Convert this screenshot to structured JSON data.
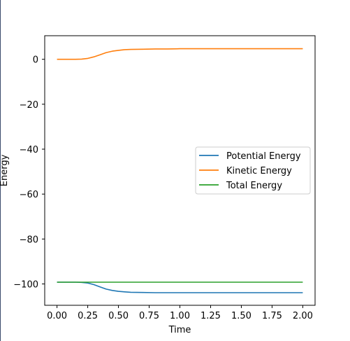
{
  "chart_data": {
    "type": "line",
    "xlabel": "Time",
    "ylabel": "Energy",
    "xlim": [
      -0.1,
      2.1
    ],
    "ylim": [
      -109.5,
      10.5
    ],
    "xticks": [
      0.0,
      0.25,
      0.5,
      0.75,
      1.0,
      1.25,
      1.5,
      1.75,
      2.0
    ],
    "xtick_labels": [
      "0.00",
      "0.25",
      "0.50",
      "0.75",
      "1.00",
      "1.25",
      "1.50",
      "1.75",
      "2.00"
    ],
    "yticks": [
      0,
      -20,
      -40,
      -60,
      -80,
      -100
    ],
    "ytick_labels": [
      "0",
      "−20",
      "−40",
      "−60",
      "−80",
      "−100"
    ],
    "grid": false,
    "legend_position": "center-right",
    "series": [
      {
        "name": "Potential Energy",
        "color": "#1f77b4",
        "x": [
          0.0,
          0.05,
          0.1,
          0.15,
          0.2,
          0.25,
          0.3,
          0.35,
          0.4,
          0.45,
          0.5,
          0.55,
          0.6,
          0.7,
          0.8,
          0.9,
          1.0,
          1.2,
          1.4,
          1.6,
          1.8,
          2.0
        ],
        "y": [
          -99.2,
          -99.2,
          -99.2,
          -99.2,
          -99.3,
          -99.6,
          -100.3,
          -101.3,
          -102.3,
          -102.9,
          -103.3,
          -103.5,
          -103.7,
          -103.8,
          -103.9,
          -103.9,
          -103.9,
          -103.9,
          -103.9,
          -103.9,
          -103.9,
          -103.9
        ]
      },
      {
        "name": "Kinetic Energy",
        "color": "#ff7f0e",
        "x": [
          0.0,
          0.05,
          0.1,
          0.15,
          0.2,
          0.25,
          0.3,
          0.35,
          0.4,
          0.45,
          0.5,
          0.55,
          0.6,
          0.7,
          0.8,
          0.9,
          1.0,
          1.2,
          1.4,
          1.6,
          1.8,
          2.0
        ],
        "y": [
          0.0,
          0.0,
          0.0,
          0.0,
          0.1,
          0.4,
          1.1,
          2.0,
          3.0,
          3.6,
          4.0,
          4.3,
          4.4,
          4.5,
          4.6,
          4.6,
          4.7,
          4.7,
          4.7,
          4.7,
          4.7,
          4.7
        ]
      },
      {
        "name": "Total Energy",
        "color": "#2ca02c",
        "x": [
          0.0,
          2.0
        ],
        "y": [
          -99.2,
          -99.2
        ]
      }
    ]
  }
}
